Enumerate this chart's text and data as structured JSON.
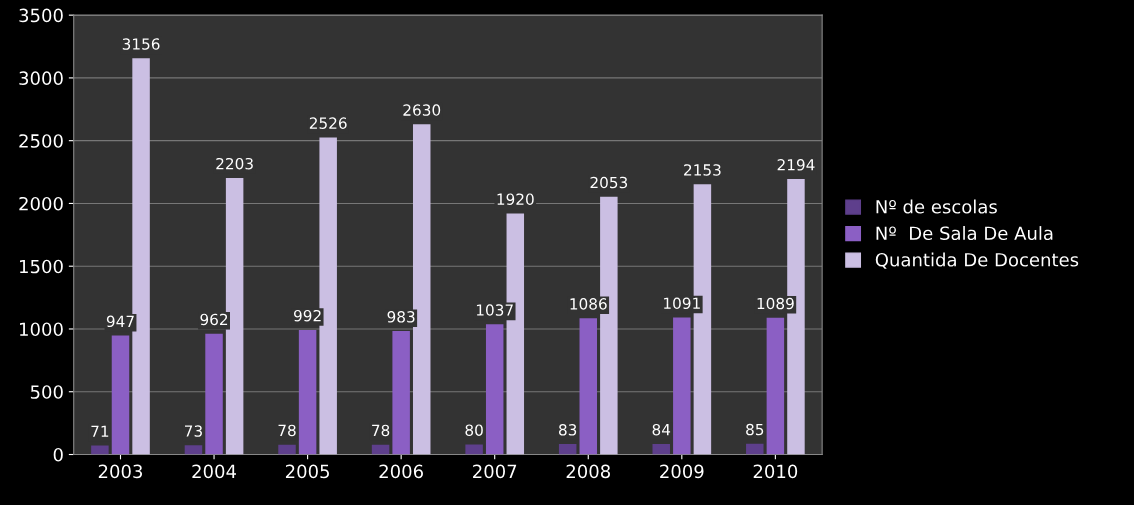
{
  "chart_data": {
    "type": "bar",
    "categories": [
      "2003",
      "2004",
      "2005",
      "2006",
      "2007",
      "2008",
      "2009",
      "2010"
    ],
    "series": [
      {
        "name": "Nº de escolas",
        "color": "#5e3f8c",
        "values": [
          71,
          73,
          78,
          78,
          80,
          83,
          84,
          85
        ]
      },
      {
        "name": "Nº  De Sala De Aula",
        "color": "#8b5fc4",
        "values": [
          947,
          962,
          992,
          983,
          1037,
          1086,
          1091,
          1089
        ]
      },
      {
        "name": "Quantida De Docentes",
        "color": "#cbbfe3",
        "values": [
          3156,
          2203,
          2526,
          2630,
          1920,
          2053,
          2153,
          2194
        ]
      }
    ],
    "ylim": [
      0,
      3500
    ],
    "yticks": [
      0,
      500,
      1000,
      1500,
      2000,
      2500,
      3000,
      3500
    ],
    "grid": "y",
    "legend": "right",
    "data_labels": true
  }
}
